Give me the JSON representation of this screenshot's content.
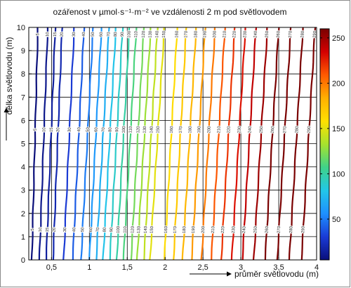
{
  "chart_data": {
    "type": "contour",
    "title": "ozářenost v µmol·s⁻¹·m⁻² ve vzdálenosti 2 m pod světlovodem",
    "xlabel": "průměr světlovodu (m)",
    "ylabel": "délka světlovodu (m)",
    "xlim": [
      0.2,
      4
    ],
    "ylim": [
      0,
      10
    ],
    "x_ticks": [
      "0,5",
      "1",
      "1,5",
      "2",
      "2,5",
      "3",
      "3,5",
      "4"
    ],
    "x_tick_values": [
      0.5,
      1,
      1.5,
      2,
      2.5,
      3,
      3.5,
      4
    ],
    "y_ticks": [
      "0",
      "1",
      "2",
      "3",
      "4",
      "5",
      "6",
      "7",
      "8",
      "9",
      "10"
    ],
    "y_tick_values": [
      0,
      1,
      2,
      3,
      4,
      5,
      6,
      7,
      8,
      9,
      10
    ],
    "grid": true,
    "colorbar": {
      "range": [
        5,
        260
      ],
      "ticks": [
        50,
        100,
        150,
        200,
        250
      ],
      "colors": [
        "#0a0f7a",
        "#1a3bd6",
        "#1e90ff",
        "#22c7e8",
        "#3fd28a",
        "#a6e22e",
        "#ffe000",
        "#ffb000",
        "#ff5a00",
        "#d40000",
        "#7a0000"
      ]
    },
    "contour_levels": [
      {
        "level": 5,
        "x_bottom": 0.24,
        "x_top": 0.32
      },
      {
        "level": 10,
        "x_bottom": 0.34,
        "x_top": 0.45
      },
      {
        "level": 15,
        "x_bottom": 0.43,
        "x_top": 0.55
      },
      {
        "level": 20,
        "x_bottom": 0.52,
        "x_top": 0.64
      },
      {
        "level": 30,
        "x_bottom": 0.66,
        "x_top": 0.8
      },
      {
        "level": 40,
        "x_bottom": 0.78,
        "x_top": 0.93
      },
      {
        "level": 50,
        "x_bottom": 0.89,
        "x_top": 1.05
      },
      {
        "level": 60,
        "x_bottom": 1.0,
        "x_top": 1.16
      },
      {
        "level": 70,
        "x_bottom": 1.09,
        "x_top": 1.26
      },
      {
        "level": 80,
        "x_bottom": 1.18,
        "x_top": 1.35
      },
      {
        "level": 90,
        "x_bottom": 1.27,
        "x_top": 1.44
      },
      {
        "level": 100,
        "x_bottom": 1.36,
        "x_top": 1.53
      },
      {
        "level": 110,
        "x_bottom": 1.45,
        "x_top": 1.62
      },
      {
        "level": 120,
        "x_bottom": 1.55,
        "x_top": 1.72
      },
      {
        "level": 130,
        "x_bottom": 1.63,
        "x_top": 1.81
      },
      {
        "level": 140,
        "x_bottom": 1.72,
        "x_top": 1.9
      },
      {
        "level": 150,
        "x_bottom": 1.8,
        "x_top": 1.99
      },
      {
        "level": 160,
        "x_bottom": 1.99,
        "x_top": 2.16
      },
      {
        "level": 170,
        "x_bottom": 2.11,
        "x_top": 2.28
      },
      {
        "level": 180,
        "x_bottom": 2.23,
        "x_top": 2.41
      },
      {
        "level": 190,
        "x_bottom": 2.35,
        "x_top": 2.53
      },
      {
        "level": 200,
        "x_bottom": 2.48,
        "x_top": 2.66
      },
      {
        "level": 210,
        "x_bottom": 2.61,
        "x_top": 2.79
      },
      {
        "level": 220,
        "x_bottom": 2.74,
        "x_top": 2.92
      },
      {
        "level": 230,
        "x_bottom": 2.88,
        "x_top": 3.06
      },
      {
        "level": 240,
        "x_bottom": 3.02,
        "x_top": 3.2
      },
      {
        "level": 250,
        "x_bottom": 3.17,
        "x_top": 3.35
      },
      {
        "level": 260,
        "x_bottom": 3.32,
        "x_top": 3.5
      },
      {
        "level": 270,
        "x_bottom": 3.48,
        "x_top": 3.66
      },
      {
        "level": 280,
        "x_bottom": 3.64,
        "x_top": 3.82
      },
      {
        "level": 290,
        "x_bottom": 3.8,
        "x_top": 3.98
      }
    ]
  }
}
